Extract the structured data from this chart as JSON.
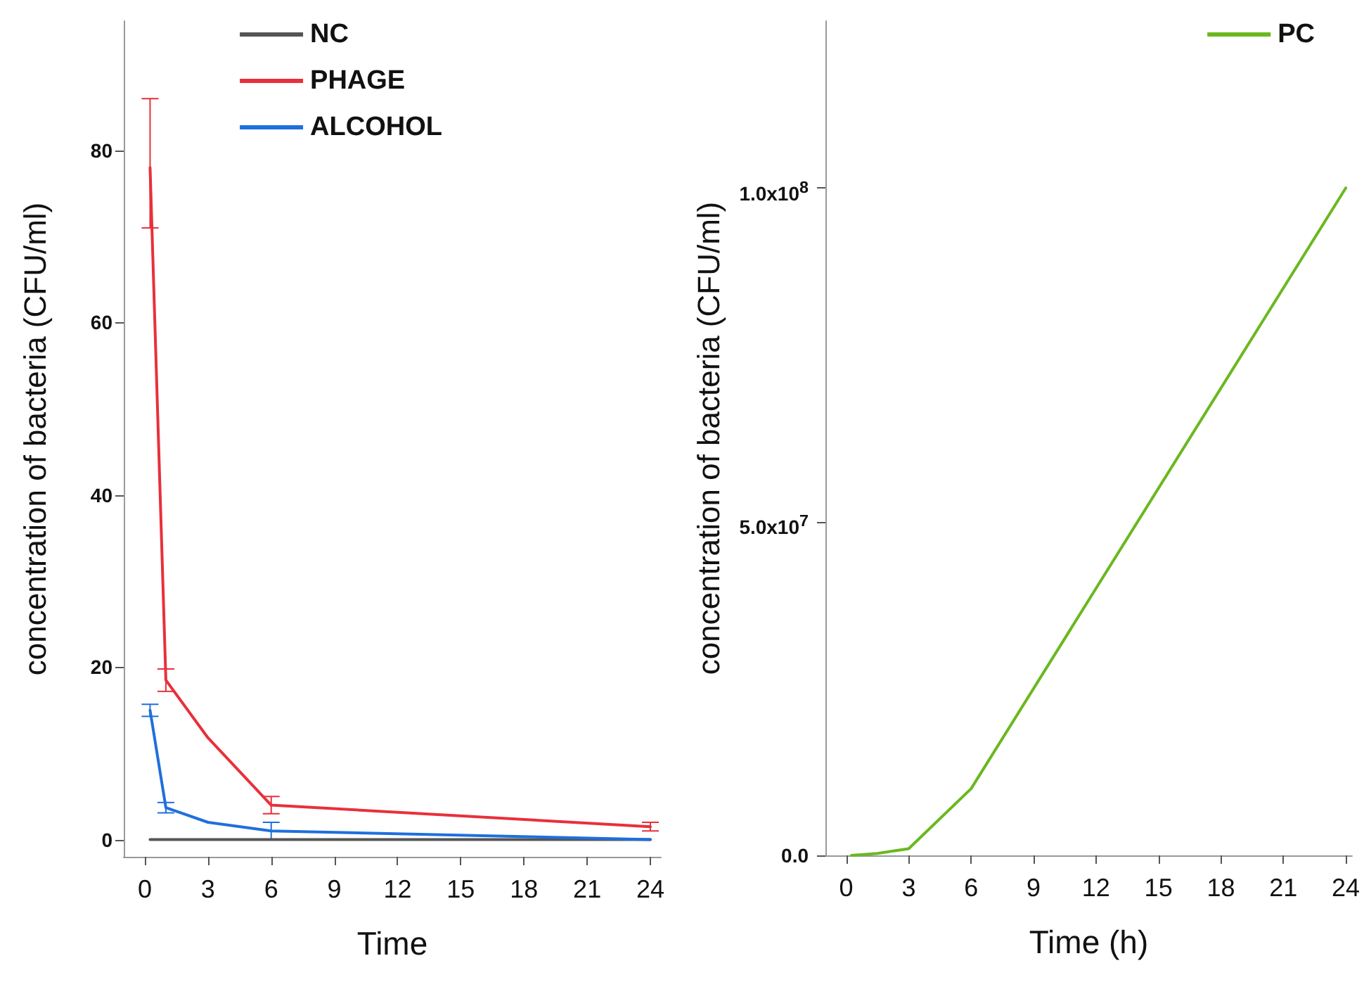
{
  "chart_data": [
    {
      "type": "line",
      "xlabel": "Time",
      "ylabel": "concentration of bacteria (CFU/ml)",
      "xlim": [
        -1,
        24.5
      ],
      "ylim": [
        -2,
        95
      ],
      "xticks": [
        0,
        3,
        6,
        9,
        12,
        15,
        18,
        21,
        24
      ],
      "yticks": [
        0,
        20,
        40,
        60,
        80
      ],
      "grid": false,
      "legend": "top",
      "marker": "none",
      "line_style": "solid",
      "series": [
        {
          "name": "NC",
          "color": "#555555",
          "x": [
            0.25,
            1,
            3,
            6,
            24
          ],
          "values": [
            0,
            0,
            0,
            0,
            0
          ]
        },
        {
          "name": "PHAGE",
          "color": "#e8303a",
          "x": [
            0.25,
            1,
            3,
            6,
            24
          ],
          "values": [
            78,
            18.5,
            11.8,
            4,
            1.5
          ],
          "errors": [
            [
              71,
              86
            ],
            1.3,
            null,
            1,
            0.5
          ]
        },
        {
          "name": "ALCOHOL",
          "color": "#1f6fdc",
          "x": [
            0.25,
            1,
            3,
            6,
            24
          ],
          "values": [
            15,
            3.7,
            2,
            1,
            0
          ],
          "errors": [
            0.7,
            0.6,
            null,
            1,
            null
          ]
        }
      ]
    },
    {
      "type": "line",
      "xlabel": "Time (h)",
      "ylabel": "concentration of bacteria (CFU/ml)",
      "xlim": [
        -1,
        24.3
      ],
      "ylim": [
        0,
        125000000
      ],
      "xticks": [
        0,
        3,
        6,
        9,
        12,
        15,
        18,
        21,
        24
      ],
      "yticks": [
        {
          "value": 0,
          "label": "0.0"
        },
        {
          "value": 50000000,
          "label": "5.0x10$^{7}$"
        },
        {
          "value": 100000000,
          "label": "1.0x10$^{8}$"
        }
      ],
      "grid": false,
      "legend": "top right",
      "marker": "none",
      "line_style": "solid",
      "series": [
        {
          "name": "PC",
          "color": "#6ab820",
          "x": [
            0.25,
            1.5,
            3,
            6,
            24
          ],
          "values": [
            0,
            300000,
            1000000,
            10000000,
            100000000
          ]
        }
      ]
    }
  ]
}
